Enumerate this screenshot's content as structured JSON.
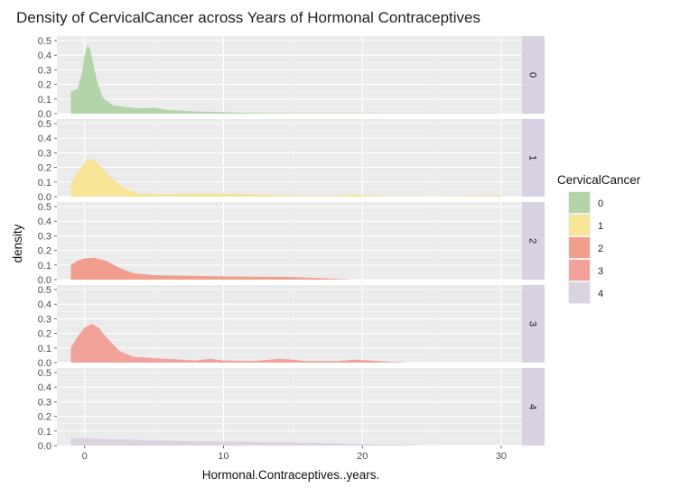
{
  "chart_data": {
    "type": "area",
    "title": "Density of CervicalCancer across Years of Hormonal Contraceptives",
    "xlabel": "Hormonal.Contraceptives..years.",
    "ylabel": "density",
    "xlim": [
      -2,
      31.5
    ],
    "ylim": [
      0,
      0.5
    ],
    "x_ticks": [
      0,
      10,
      20,
      30
    ],
    "y_ticks": [
      0.0,
      0.1,
      0.2,
      0.3,
      0.4,
      0.5
    ],
    "x_tick_labels": [
      "0",
      "10",
      "20",
      "30"
    ],
    "y_tick_labels": [
      "0.0",
      "0.1",
      "0.2",
      "0.3",
      "0.4",
      "0.5"
    ],
    "grid": true,
    "facets": "rows by CervicalCancer",
    "legend": {
      "title": "CervicalCancer",
      "position": "right",
      "entries": [
        {
          "label": "0",
          "color": "#b3d4a9"
        },
        {
          "label": "1",
          "color": "#f6e597"
        },
        {
          "label": "2",
          "color": "#ef9f8c"
        },
        {
          "label": "3",
          "color": "#f1a29a"
        },
        {
          "label": "4",
          "color": "#dcd3e1"
        }
      ]
    },
    "series": [
      {
        "name": "0",
        "color": "#b3d4a9",
        "points": [
          [
            -1,
            0.15
          ],
          [
            -0.5,
            0.17
          ],
          [
            -0.2,
            0.28
          ],
          [
            0,
            0.4
          ],
          [
            0.2,
            0.47
          ],
          [
            0.4,
            0.44
          ],
          [
            0.6,
            0.35
          ],
          [
            0.9,
            0.22
          ],
          [
            1.3,
            0.11
          ],
          [
            2,
            0.06
          ],
          [
            3,
            0.045
          ],
          [
            4,
            0.035
          ],
          [
            5,
            0.04
          ],
          [
            6,
            0.025
          ],
          [
            8,
            0.015
          ],
          [
            10,
            0.01
          ],
          [
            12,
            0.005
          ],
          [
            15,
            0.003
          ],
          [
            20,
            0.003
          ],
          [
            25,
            0.001
          ],
          [
            30,
            0.001
          ]
        ]
      },
      {
        "name": "1",
        "color": "#f6e597",
        "points": [
          [
            -1,
            0.09
          ],
          [
            -0.5,
            0.17
          ],
          [
            0,
            0.23
          ],
          [
            0.3,
            0.26
          ],
          [
            0.7,
            0.25
          ],
          [
            1.2,
            0.2
          ],
          [
            2,
            0.12
          ],
          [
            3,
            0.05
          ],
          [
            4,
            0.02
          ],
          [
            6,
            0.015
          ],
          [
            8,
            0.02
          ],
          [
            10,
            0.02
          ],
          [
            12,
            0.015
          ],
          [
            14,
            0.01
          ],
          [
            16,
            0.005
          ],
          [
            18,
            0.005
          ],
          [
            19.5,
            0.015
          ],
          [
            20,
            0.01
          ],
          [
            22,
            0.003
          ],
          [
            25,
            0.002
          ],
          [
            28,
            0.005
          ],
          [
            30,
            0.01
          ]
        ]
      },
      {
        "name": "2",
        "color": "#ef9f8c",
        "points": [
          [
            -1,
            0.1
          ],
          [
            -0.5,
            0.13
          ],
          [
            0,
            0.145
          ],
          [
            0.7,
            0.15
          ],
          [
            1.5,
            0.13
          ],
          [
            2.5,
            0.08
          ],
          [
            3.5,
            0.045
          ],
          [
            5,
            0.03
          ],
          [
            8,
            0.025
          ],
          [
            12,
            0.02
          ],
          [
            15,
            0.018
          ],
          [
            17,
            0.01
          ],
          [
            18,
            0.005
          ],
          [
            19,
            0.002
          ]
        ]
      },
      {
        "name": "3",
        "color": "#f1a29a",
        "points": [
          [
            -1,
            0.1
          ],
          [
            -0.5,
            0.18
          ],
          [
            0,
            0.24
          ],
          [
            0.5,
            0.265
          ],
          [
            1,
            0.24
          ],
          [
            1.5,
            0.18
          ],
          [
            2.5,
            0.08
          ],
          [
            3.5,
            0.04
          ],
          [
            5,
            0.03
          ],
          [
            7,
            0.02
          ],
          [
            8,
            0.015
          ],
          [
            9,
            0.025
          ],
          [
            10,
            0.015
          ],
          [
            12,
            0.01
          ],
          [
            14,
            0.025
          ],
          [
            15,
            0.02
          ],
          [
            16,
            0.01
          ],
          [
            18,
            0.01
          ],
          [
            19.5,
            0.02
          ],
          [
            20.5,
            0.015
          ],
          [
            22,
            0.005
          ],
          [
            23,
            0.002
          ]
        ]
      },
      {
        "name": "4",
        "color": "#dcd3e1",
        "points": [
          [
            -1,
            0.05
          ],
          [
            0,
            0.05
          ],
          [
            2,
            0.045
          ],
          [
            5,
            0.035
          ],
          [
            8,
            0.03
          ],
          [
            12,
            0.025
          ],
          [
            16,
            0.02
          ],
          [
            20,
            0.01
          ],
          [
            23,
            0.005
          ],
          [
            24,
            0.002
          ]
        ]
      }
    ]
  }
}
